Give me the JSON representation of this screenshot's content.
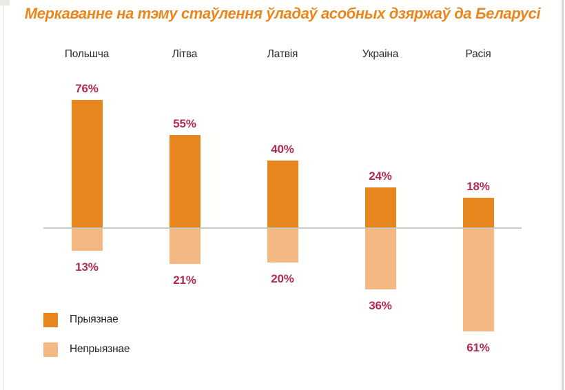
{
  "title": "Меркаванне на тэму стаўлення ўладаў асобных дзяржаў да Беларусі",
  "colors": {
    "title": "#E8871F",
    "bar_positive": "#E6861C",
    "bar_negative": "#F4B982",
    "value_label": "#B02B55",
    "category_label": "#2B2B2B",
    "baseline": "#C3C3C3",
    "page_edge": "#D8D8D8",
    "background": "#FFFFFF"
  },
  "legend": {
    "items": [
      {
        "label": "Прыязнае",
        "color": "#E6861C"
      },
      {
        "label": "Непрыязнае",
        "color": "#F4B982"
      }
    ]
  },
  "chart_data": {
    "type": "bar",
    "subtype": "diverging-vertical",
    "title": "Меркаванне на тэму стаўлення ўладаў асобных дзяржаў да Беларусі",
    "categories": [
      "Польшча",
      "Літва",
      "Латвія",
      "Украіна",
      "Расія"
    ],
    "series": [
      {
        "name": "Прыязнае",
        "direction": "up",
        "color": "#E6861C",
        "values": [
          76,
          55,
          40,
          24,
          18
        ]
      },
      {
        "name": "Непрыязнае",
        "direction": "down",
        "color": "#F4B982",
        "values": [
          13,
          21,
          20,
          36,
          61
        ]
      }
    ],
    "value_suffix": "%",
    "axis": {
      "baseline_value": 0,
      "gridlines": false,
      "legend_position": "bottom-left"
    }
  }
}
